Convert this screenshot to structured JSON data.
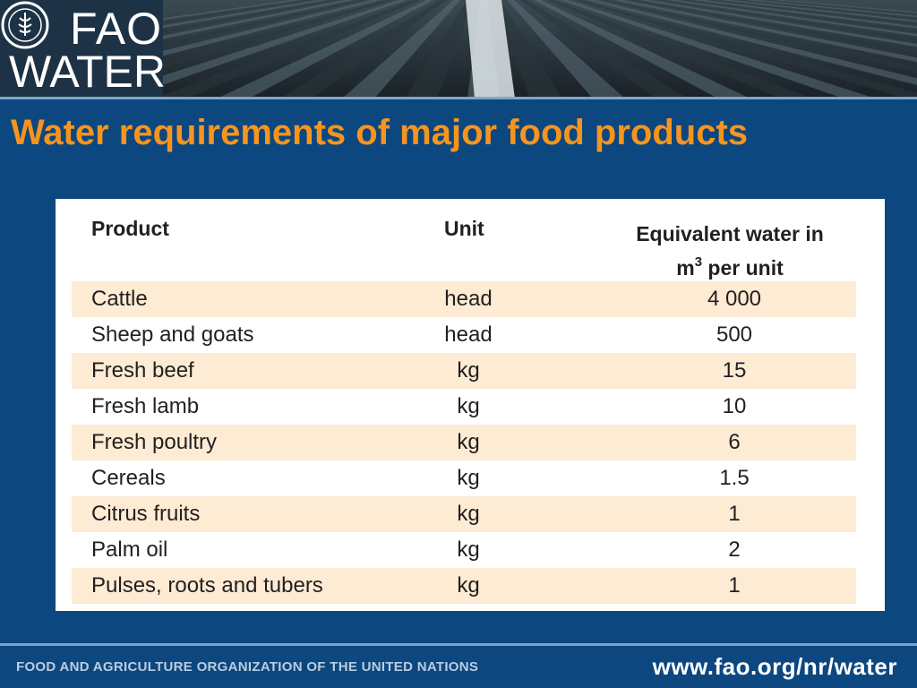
{
  "header": {
    "logo_line1": "FAO",
    "logo_line2": "WATER",
    "emblem_icon": "fao-emblem-icon",
    "banner_image": "crop-rows-photo"
  },
  "slide": {
    "title": "Water requirements of major food products"
  },
  "table": {
    "headers": {
      "product": "Product",
      "unit": "Unit",
      "water_line1": "Equivalent water in",
      "water_unit_base": "m",
      "water_unit_sup": "3",
      "water_unit_rest": " per unit"
    },
    "rows": [
      {
        "product": "Cattle",
        "unit": "head",
        "water": "4 000"
      },
      {
        "product": "Sheep and goats",
        "unit": "head",
        "water": "500"
      },
      {
        "product": "Fresh beef",
        "unit": "kg",
        "water": "15"
      },
      {
        "product": "Fresh lamb",
        "unit": "kg",
        "water": "10"
      },
      {
        "product": "Fresh poultry",
        "unit": "kg",
        "water": "6"
      },
      {
        "product": "Cereals",
        "unit": "kg",
        "water": "1.5"
      },
      {
        "product": "Citrus fruits",
        "unit": "kg",
        "water": "1"
      },
      {
        "product": "Palm oil",
        "unit": "kg",
        "water": "2"
      },
      {
        "product": "Pulses, roots and tubers",
        "unit": "kg",
        "water": "1"
      }
    ],
    "shaded_color": "#fdebd3"
  },
  "footer": {
    "organization": "FOOD AND AGRICULTURE ORGANIZATION OF THE UNITED NATIONS",
    "url": "www.fao.org/nr/water"
  },
  "colors": {
    "background": "#0c4780",
    "title": "#f7941d",
    "rule": "#7fa6c9"
  }
}
